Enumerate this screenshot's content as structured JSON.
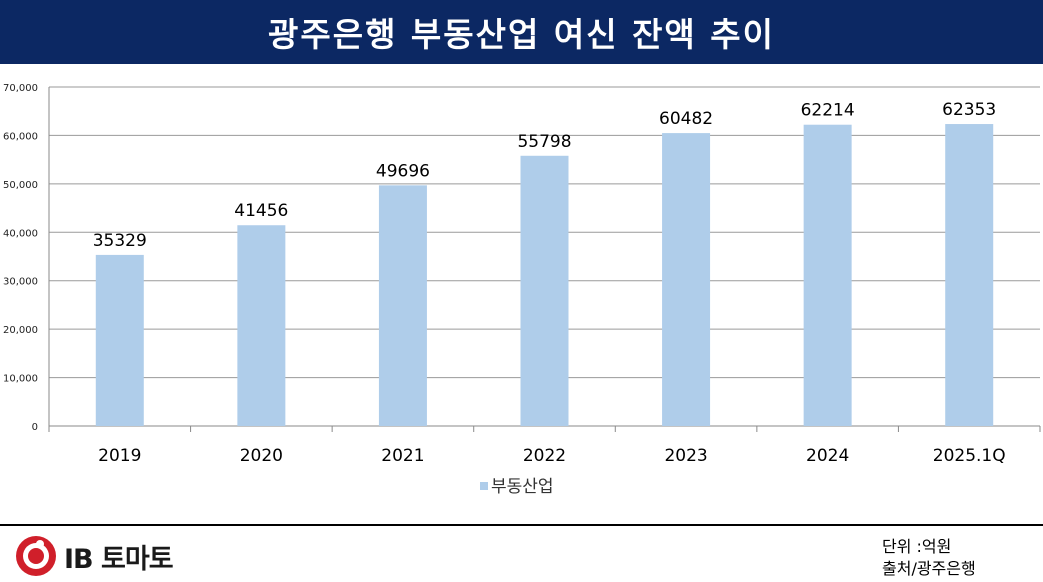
{
  "header": {
    "title": "광주은행 부동산업 여신 잔액 추이"
  },
  "chart_data": {
    "type": "bar",
    "categories": [
      "2019",
      "2020",
      "2021",
      "2022",
      "2023",
      "2024",
      "2025.1Q"
    ],
    "series": [
      {
        "name": "부동산업",
        "values": [
          35329,
          41456,
          49696,
          55798,
          60482,
          62214,
          62353
        ],
        "color": "#afcdea"
      }
    ],
    "y_ticks": [
      "0",
      "10,000",
      "20,000",
      "30,000",
      "40,000",
      "50,000",
      "60,000",
      "70,000"
    ],
    "ylim": [
      0,
      70000
    ],
    "grid": true,
    "legend_position": "bottom",
    "data_labels": [
      "35329",
      "41456",
      "49696",
      "55798",
      "60482",
      "62214",
      "62353"
    ]
  },
  "footer": {
    "logo_text": "IB 토마토",
    "unit_note": "단위 :억원",
    "source_note": "출처/광주은행"
  },
  "colors": {
    "title_bg": "#0c2863",
    "bar": "#afcdea",
    "logo_red": "#d01f2a"
  }
}
